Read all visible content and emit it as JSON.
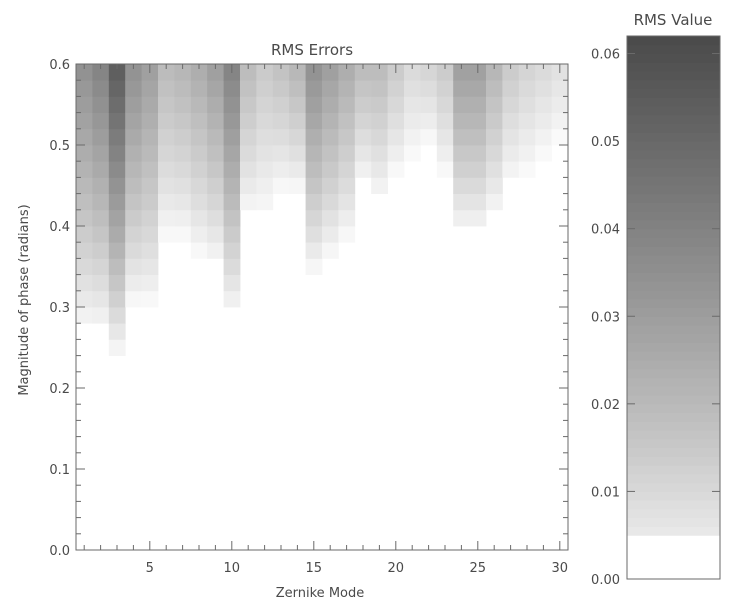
{
  "chart_data": [
    {
      "type": "heatmap",
      "title": "RMS Errors",
      "xlabel": "Zernike Mode",
      "ylabel": "Magnitude of phase (radians)",
      "xlim": [
        1,
        30
      ],
      "ylim": [
        0,
        0.6
      ],
      "x_ticks": [
        "5",
        "10",
        "15",
        "20",
        "25",
        "30"
      ],
      "y_ticks": [
        "0.0",
        "0.1",
        "0.2",
        "0.3",
        "0.4",
        "0.5",
        "0.6"
      ],
      "grid": false,
      "colormap": {
        "low": "#ffffff",
        "high": "#4a4a4a"
      },
      "columns": [
        {
          "mode": 1,
          "threshold": 0.27,
          "max_value": 0.035
        },
        {
          "mode": 2,
          "threshold": 0.27,
          "max_value": 0.04
        },
        {
          "mode": 3,
          "threshold": 0.24,
          "max_value": 0.055
        },
        {
          "mode": 4,
          "threshold": 0.3,
          "max_value": 0.035
        },
        {
          "mode": 5,
          "threshold": 0.3,
          "max_value": 0.03
        },
        {
          "mode": 6,
          "threshold": 0.38,
          "max_value": 0.02
        },
        {
          "mode": 7,
          "threshold": 0.38,
          "max_value": 0.022
        },
        {
          "mode": 8,
          "threshold": 0.36,
          "max_value": 0.025
        },
        {
          "mode": 9,
          "threshold": 0.35,
          "max_value": 0.03
        },
        {
          "mode": 10,
          "threshold": 0.29,
          "max_value": 0.04
        },
        {
          "mode": 11,
          "threshold": 0.41,
          "max_value": 0.02
        },
        {
          "mode": 12,
          "threshold": 0.41,
          "max_value": 0.015
        },
        {
          "mode": 13,
          "threshold": 0.44,
          "max_value": 0.018
        },
        {
          "mode": 14,
          "threshold": 0.44,
          "max_value": 0.022
        },
        {
          "mode": 15,
          "threshold": 0.34,
          "max_value": 0.035
        },
        {
          "mode": 16,
          "threshold": 0.36,
          "max_value": 0.03
        },
        {
          "mode": 17,
          "threshold": 0.38,
          "max_value": 0.025
        },
        {
          "mode": 18,
          "threshold": 0.45,
          "max_value": 0.02
        },
        {
          "mode": 19,
          "threshold": 0.43,
          "max_value": 0.02
        },
        {
          "mode": 20,
          "threshold": 0.46,
          "max_value": 0.015
        },
        {
          "mode": 21,
          "threshold": 0.48,
          "max_value": 0.01
        },
        {
          "mode": 22,
          "threshold": 0.5,
          "max_value": 0.012
        },
        {
          "mode": 23,
          "threshold": 0.46,
          "max_value": 0.015
        },
        {
          "mode": 24,
          "threshold": 0.39,
          "max_value": 0.03
        },
        {
          "mode": 25,
          "threshold": 0.39,
          "max_value": 0.03
        },
        {
          "mode": 26,
          "threshold": 0.41,
          "max_value": 0.022
        },
        {
          "mode": 27,
          "threshold": 0.45,
          "max_value": 0.015
        },
        {
          "mode": 28,
          "threshold": 0.46,
          "max_value": 0.012
        },
        {
          "mode": 29,
          "threshold": 0.48,
          "max_value": 0.01
        },
        {
          "mode": 30,
          "threshold": 0.5,
          "max_value": 0.008
        }
      ]
    },
    {
      "type": "colorbar",
      "title": "RMS Value",
      "ylim": [
        0,
        0.062
      ],
      "ticks": [
        "0.00",
        "0.01",
        "0.02",
        "0.03",
        "0.04",
        "0.05",
        "0.06"
      ]
    }
  ]
}
